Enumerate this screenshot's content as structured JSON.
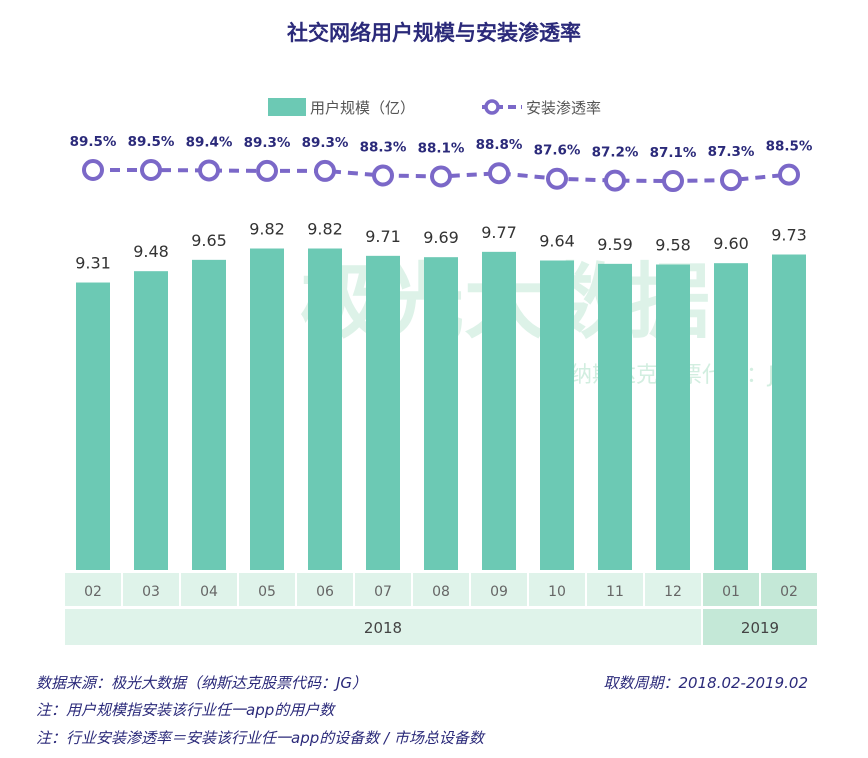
{
  "chart_data": {
    "type": "bar+line",
    "title": "社交网络用户规模与安装渗透率",
    "categories": [
      "02",
      "03",
      "04",
      "05",
      "06",
      "07",
      "08",
      "09",
      "10",
      "11",
      "12",
      "01",
      "02"
    ],
    "year_groups": [
      {
        "label": "2018",
        "count": 11
      },
      {
        "label": "2019",
        "count": 2
      }
    ],
    "series": [
      {
        "name": "用户规模（亿）",
        "type": "bar",
        "color": "#6cc9b4",
        "values": [
          9.31,
          9.48,
          9.65,
          9.82,
          9.82,
          9.71,
          9.69,
          9.77,
          9.64,
          9.59,
          9.58,
          9.6,
          9.73
        ],
        "labels": [
          "9.31",
          "9.48",
          "9.65",
          "9.82",
          "9.82",
          "9.71",
          "9.69",
          "9.77",
          "9.64",
          "9.59",
          "9.58",
          "9.60",
          "9.73"
        ]
      },
      {
        "name": "安装渗透率",
        "type": "line",
        "color": "#7b68c8",
        "style": "dashed",
        "marker": "hollow-circle",
        "values": [
          89.5,
          89.5,
          89.4,
          89.3,
          89.3,
          88.3,
          88.1,
          88.8,
          87.6,
          87.2,
          87.1,
          87.3,
          88.5
        ],
        "labels": [
          "89.5%",
          "89.5%",
          "89.4%",
          "89.3%",
          "89.3%",
          "88.3%",
          "88.1%",
          "88.8%",
          "87.6%",
          "87.2%",
          "87.1%",
          "87.3%",
          "88.5%"
        ]
      }
    ],
    "bar_ylim": [
      5,
      10
    ],
    "legend": "top",
    "grid": false
  },
  "watermark": {
    "main": "极光大数据",
    "sub": "纳斯达克股票代码：JG"
  },
  "footer": {
    "source": "数据来源：极光大数据（纳斯达克股票代码：JG）",
    "period": "取数周期：2018.02-2019.02",
    "note1": "注：用户规模指安装该行业任一app的用户数",
    "note2": "注：行业安装渗透率＝安装该行业任一app的设备数 / 市场总设备数"
  },
  "colors": {
    "bar": "#6cc9b4",
    "line": "#7b68c8",
    "axis_light": "#dff3ea",
    "axis_dark": "#c4e8d7",
    "title": "#2b2a7a"
  }
}
